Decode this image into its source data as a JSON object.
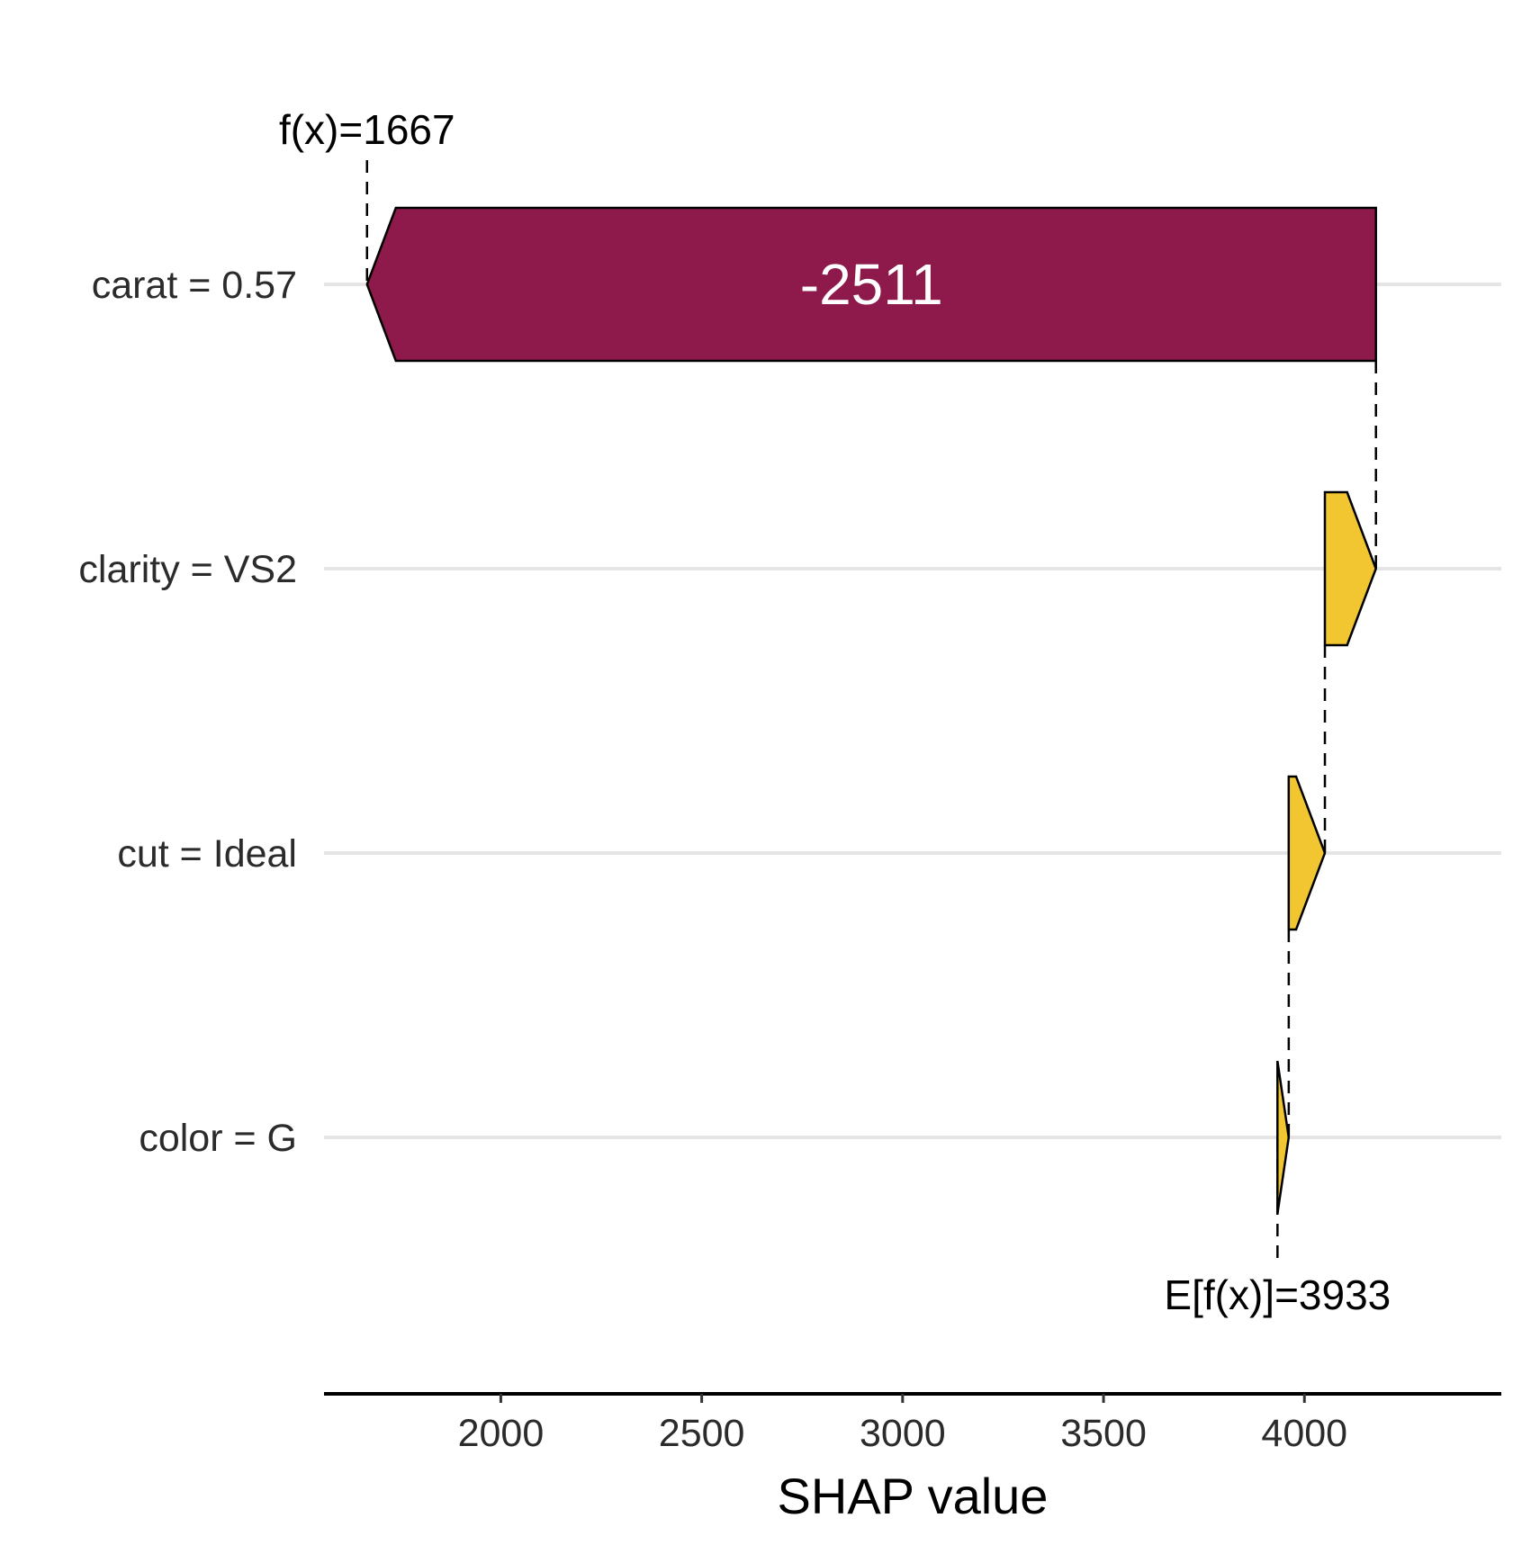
{
  "chart_data": {
    "type": "bar",
    "subtype": "shap-waterfall",
    "title": "",
    "xlabel": "SHAP value",
    "ylabel": "",
    "xlim": [
      1560,
      4490
    ],
    "xticks": [
      2000,
      2500,
      3000,
      3500,
      4000
    ],
    "xtick_labels": [
      "2000",
      "2500",
      "3000",
      "3500",
      "4000"
    ],
    "grid": "horizontal",
    "legend": "none",
    "colors": {
      "negative": "#8e1a4b",
      "positive": "#f2c631",
      "grid": "#e5e5e5"
    },
    "base_value": 3933,
    "base_label": "E[f(x)]=3933",
    "prediction": 1667,
    "prediction_label": "f(x)=1667",
    "features": [
      {
        "label": "carat = 0.57",
        "start": 4178,
        "end": 1667,
        "value": -2511,
        "value_label": "-2511"
      },
      {
        "label": "clarity = VS2",
        "start": 4051,
        "end": 4178,
        "value": 127,
        "value_label": ""
      },
      {
        "label": "cut = Ideal",
        "start": 3961,
        "end": 4051,
        "value": 90,
        "value_label": ""
      },
      {
        "label": "color = G",
        "start": 3933,
        "end": 3961,
        "value": 28,
        "value_label": ""
      }
    ]
  }
}
